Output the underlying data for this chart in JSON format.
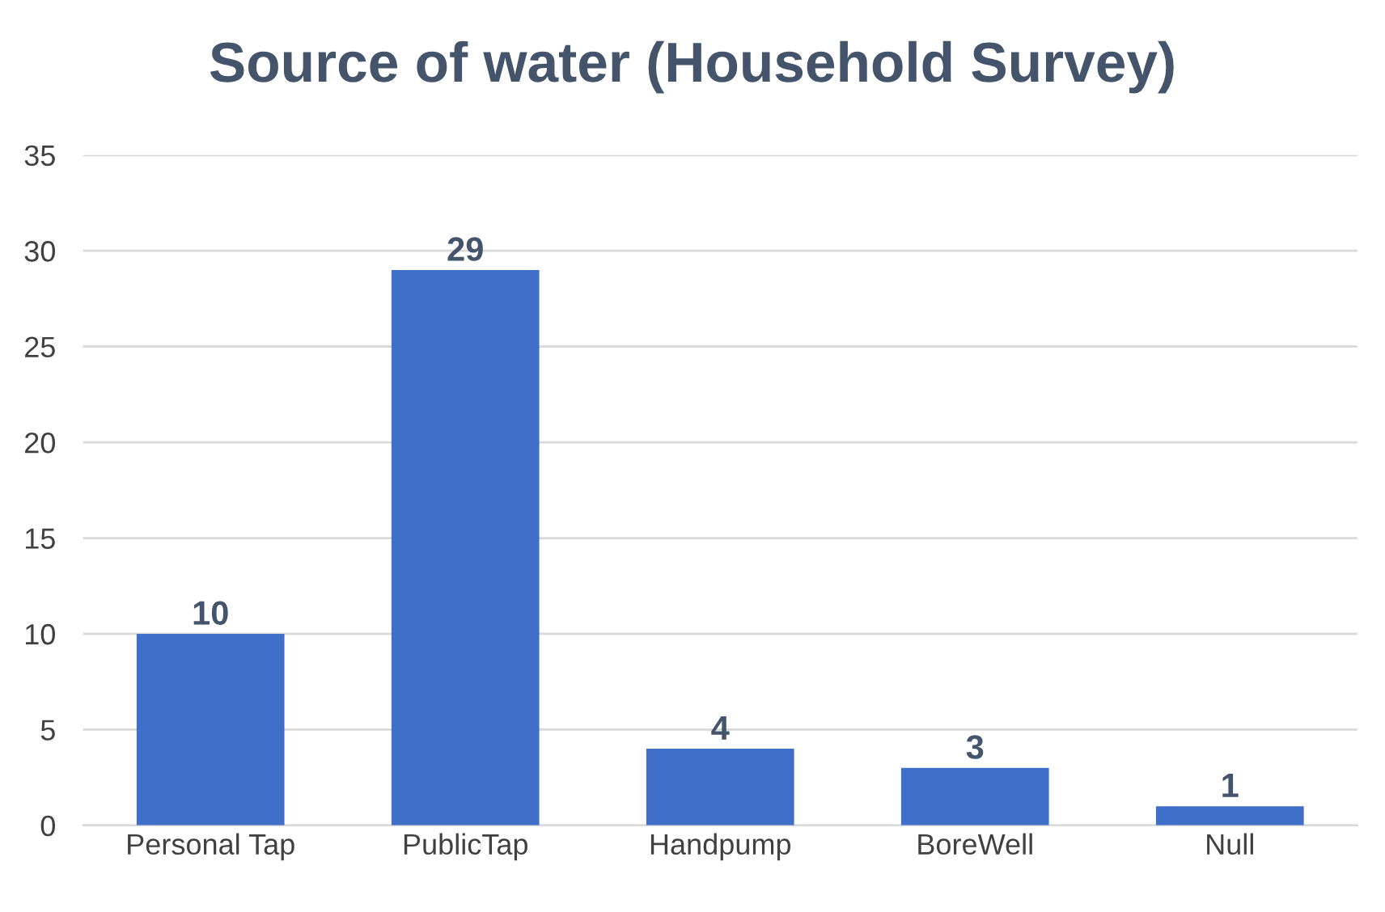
{
  "chart_data": {
    "type": "bar",
    "title": "Source of water (Household Survey)",
    "categories": [
      "Personal Tap",
      "PublicTap",
      "Handpump",
      "BoreWell",
      "Null"
    ],
    "values": [
      10,
      29,
      4,
      3,
      1
    ],
    "color": "#3f6fc9",
    "ylim": [
      0,
      35
    ],
    "yticks": [
      0,
      5,
      10,
      15,
      20,
      25,
      30,
      35
    ],
    "grid": "y",
    "data_labels": true
  }
}
